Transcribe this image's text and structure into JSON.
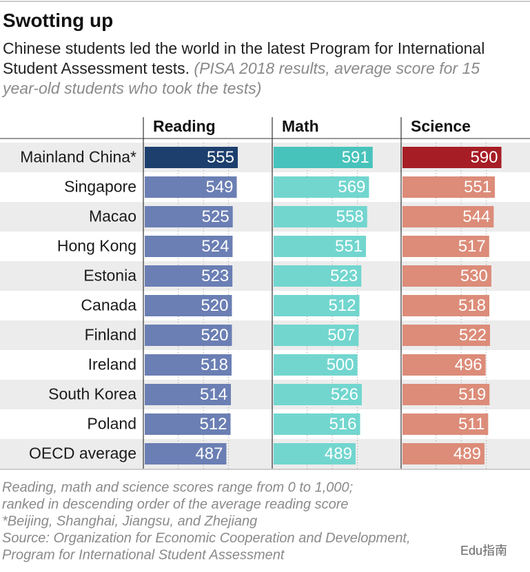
{
  "chart_data": {
    "type": "bar",
    "orientation": "horizontal",
    "title": "Swotting up",
    "subtitle": "Chinese students led the world in the latest Program for International Student Assessment tests.",
    "subtitle_note": "(PISA 2018 results, average score for 15 year-old students who took the tests)",
    "categories": [
      "Mainland China*",
      "Singapore",
      "Macao",
      "Hong Kong",
      "Estonia",
      "Canada",
      "Finland",
      "Ireland",
      "South Korea",
      "Poland",
      "OECD average"
    ],
    "series": [
      {
        "name": "Reading",
        "color": "#6b7fb4",
        "highlight_color": "#1c3f6d",
        "values": [
          555,
          549,
          525,
          524,
          523,
          520,
          520,
          518,
          514,
          512,
          487
        ]
      },
      {
        "name": "Math",
        "color": "#72d6cf",
        "highlight_color": "#47c3bb",
        "values": [
          591,
          569,
          558,
          551,
          523,
          512,
          507,
          500,
          526,
          516,
          489
        ]
      },
      {
        "name": "Science",
        "color": "#dc8c79",
        "highlight_color": "#a61d25",
        "values": [
          590,
          551,
          544,
          517,
          530,
          518,
          522,
          496,
          519,
          511,
          489
        ]
      }
    ],
    "xlim": [
      0,
      740
    ],
    "xticks": [
      200,
      350,
      500
    ],
    "grid": true,
    "notes": [
      "Reading, math and science scores range from 0 to 1,000;",
      "ranked in descending order of the average reading score",
      "*Beijing, Shanghai, Jiangsu, and Zhejiang",
      "Source: Organization for Economic Cooperation and Development,",
      "Program for International Student Assessment"
    ],
    "watermark": "Edu指南"
  }
}
